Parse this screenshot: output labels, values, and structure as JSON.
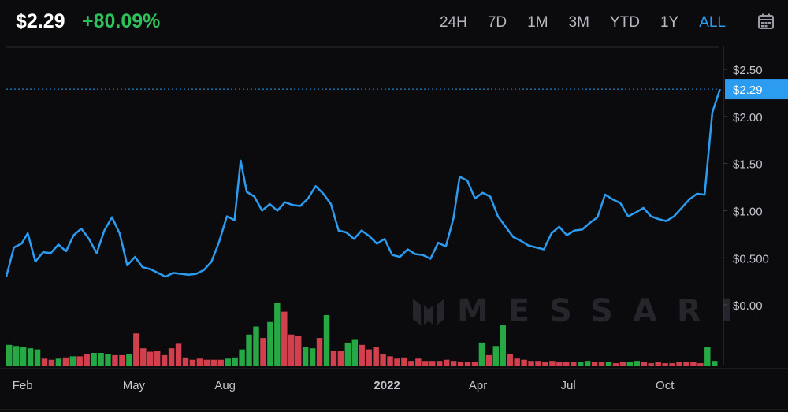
{
  "header": {
    "price": "$2.29",
    "change": "+80.09%",
    "ranges": [
      "24H",
      "7D",
      "1M",
      "3M",
      "YTD",
      "1Y",
      "ALL"
    ],
    "active_range": "ALL",
    "calendar_icon": "calendar-icon"
  },
  "watermark": {
    "text": "MESSARI",
    "icon": "messari-logo-icon"
  },
  "colors": {
    "line": "#2b9cf0",
    "up": "#26a844",
    "down": "#d2404e",
    "background": "#0b0b0e",
    "accent": "#2b9cf0"
  },
  "chart_data": {
    "type": "line",
    "current_price_label": "$2.29",
    "current_price": 2.29,
    "y_ticks": [
      "$2.50",
      "$2.00",
      "$1.50",
      "$1.00",
      "$0.500",
      "$0.00"
    ],
    "y_tick_values": [
      2.5,
      2.0,
      1.5,
      1.0,
      0.5,
      0.0
    ],
    "ylim": [
      -0.3,
      2.65
    ],
    "x_ticks": [
      "Feb",
      "May",
      "Aug",
      "2022",
      "Apr",
      "Jul",
      "Oct"
    ],
    "x_tick_positions": [
      0.2,
      3.8,
      6.8,
      12,
      15.1,
      18.1,
      21.2
    ],
    "xlim": [
      0,
      23
    ],
    "grid": false,
    "price_series": [
      [
        0.0,
        0.3
      ],
      [
        0.25,
        0.61
      ],
      [
        0.5,
        0.65
      ],
      [
        0.7,
        0.76
      ],
      [
        0.95,
        0.46
      ],
      [
        1.2,
        0.56
      ],
      [
        1.45,
        0.55
      ],
      [
        1.7,
        0.64
      ],
      [
        1.95,
        0.57
      ],
      [
        2.2,
        0.74
      ],
      [
        2.45,
        0.81
      ],
      [
        2.7,
        0.7
      ],
      [
        2.95,
        0.55
      ],
      [
        3.2,
        0.79
      ],
      [
        3.45,
        0.93
      ],
      [
        3.7,
        0.76
      ],
      [
        3.95,
        0.42
      ],
      [
        4.2,
        0.51
      ],
      [
        4.45,
        0.4
      ],
      [
        4.7,
        0.38
      ],
      [
        4.95,
        0.34
      ],
      [
        5.2,
        0.3
      ],
      [
        5.45,
        0.34
      ],
      [
        5.7,
        0.33
      ],
      [
        5.95,
        0.32
      ],
      [
        6.2,
        0.33
      ],
      [
        6.45,
        0.37
      ],
      [
        6.7,
        0.46
      ],
      [
        6.95,
        0.67
      ],
      [
        7.2,
        0.94
      ],
      [
        7.45,
        0.9
      ],
      [
        7.65,
        1.53
      ],
      [
        7.85,
        1.2
      ],
      [
        8.1,
        1.15
      ],
      [
        8.35,
        1.0
      ],
      [
        8.6,
        1.07
      ],
      [
        8.85,
        1.0
      ],
      [
        9.1,
        1.09
      ],
      [
        9.35,
        1.06
      ],
      [
        9.6,
        1.05
      ],
      [
        9.85,
        1.13
      ],
      [
        10.1,
        1.26
      ],
      [
        10.35,
        1.18
      ],
      [
        10.6,
        1.07
      ],
      [
        10.85,
        0.79
      ],
      [
        11.1,
        0.77
      ],
      [
        11.35,
        0.7
      ],
      [
        11.6,
        0.79
      ],
      [
        11.85,
        0.73
      ],
      [
        12.1,
        0.65
      ],
      [
        12.35,
        0.7
      ],
      [
        12.6,
        0.53
      ],
      [
        12.85,
        0.51
      ],
      [
        13.1,
        0.59
      ],
      [
        13.35,
        0.54
      ],
      [
        13.6,
        0.53
      ],
      [
        13.85,
        0.49
      ],
      [
        14.1,
        0.66
      ],
      [
        14.35,
        0.62
      ],
      [
        14.6,
        0.92
      ],
      [
        14.8,
        1.36
      ],
      [
        15.05,
        1.32
      ],
      [
        15.3,
        1.13
      ],
      [
        15.55,
        1.19
      ],
      [
        15.8,
        1.15
      ],
      [
        16.05,
        0.94
      ],
      [
        16.3,
        0.83
      ],
      [
        16.55,
        0.72
      ],
      [
        16.8,
        0.68
      ],
      [
        17.05,
        0.63
      ],
      [
        17.3,
        0.61
      ],
      [
        17.55,
        0.59
      ],
      [
        17.8,
        0.76
      ],
      [
        18.05,
        0.83
      ],
      [
        18.3,
        0.74
      ],
      [
        18.55,
        0.79
      ],
      [
        18.8,
        0.8
      ],
      [
        19.05,
        0.87
      ],
      [
        19.3,
        0.93
      ],
      [
        19.55,
        1.17
      ],
      [
        19.8,
        1.12
      ],
      [
        20.05,
        1.08
      ],
      [
        20.3,
        0.94
      ],
      [
        20.55,
        0.98
      ],
      [
        20.8,
        1.03
      ],
      [
        21.05,
        0.94
      ],
      [
        21.3,
        0.91
      ],
      [
        21.55,
        0.89
      ],
      [
        21.8,
        0.94
      ],
      [
        22.05,
        1.03
      ],
      [
        22.3,
        1.12
      ],
      [
        22.55,
        1.18
      ],
      [
        22.8,
        1.17
      ],
      [
        23.05,
        2.04
      ],
      [
        23.3,
        2.29
      ]
    ],
    "volume_bars": [
      {
        "up": true,
        "v": 0.18
      },
      {
        "up": true,
        "v": 0.17
      },
      {
        "up": true,
        "v": 0.16
      },
      {
        "up": true,
        "v": 0.15
      },
      {
        "up": true,
        "v": 0.14
      },
      {
        "up": false,
        "v": 0.06
      },
      {
        "up": false,
        "v": 0.05
      },
      {
        "up": true,
        "v": 0.06
      },
      {
        "up": false,
        "v": 0.07
      },
      {
        "up": true,
        "v": 0.08
      },
      {
        "up": false,
        "v": 0.08
      },
      {
        "up": false,
        "v": 0.1
      },
      {
        "up": true,
        "v": 0.11
      },
      {
        "up": true,
        "v": 0.11
      },
      {
        "up": true,
        "v": 0.1
      },
      {
        "up": false,
        "v": 0.09
      },
      {
        "up": false,
        "v": 0.09
      },
      {
        "up": true,
        "v": 0.1
      },
      {
        "up": false,
        "v": 0.28
      },
      {
        "up": false,
        "v": 0.15
      },
      {
        "up": false,
        "v": 0.12
      },
      {
        "up": false,
        "v": 0.13
      },
      {
        "up": false,
        "v": 0.09
      },
      {
        "up": false,
        "v": 0.15
      },
      {
        "up": false,
        "v": 0.19
      },
      {
        "up": false,
        "v": 0.07
      },
      {
        "up": false,
        "v": 0.05
      },
      {
        "up": false,
        "v": 0.06
      },
      {
        "up": false,
        "v": 0.05
      },
      {
        "up": false,
        "v": 0.05
      },
      {
        "up": false,
        "v": 0.05
      },
      {
        "up": true,
        "v": 0.06
      },
      {
        "up": true,
        "v": 0.07
      },
      {
        "up": true,
        "v": 0.14
      },
      {
        "up": true,
        "v": 0.27
      },
      {
        "up": true,
        "v": 0.34
      },
      {
        "up": false,
        "v": 0.24
      },
      {
        "up": true,
        "v": 0.38
      },
      {
        "up": true,
        "v": 0.55
      },
      {
        "up": false,
        "v": 0.47
      },
      {
        "up": false,
        "v": 0.27
      },
      {
        "up": false,
        "v": 0.26
      },
      {
        "up": true,
        "v": 0.16
      },
      {
        "up": true,
        "v": 0.15
      },
      {
        "up": false,
        "v": 0.24
      },
      {
        "up": true,
        "v": 0.44
      },
      {
        "up": false,
        "v": 0.13
      },
      {
        "up": false,
        "v": 0.13
      },
      {
        "up": true,
        "v": 0.2
      },
      {
        "up": true,
        "v": 0.23
      },
      {
        "up": false,
        "v": 0.18
      },
      {
        "up": false,
        "v": 0.14
      },
      {
        "up": false,
        "v": 0.16
      },
      {
        "up": false,
        "v": 0.1
      },
      {
        "up": false,
        "v": 0.08
      },
      {
        "up": false,
        "v": 0.06
      },
      {
        "up": false,
        "v": 0.07
      },
      {
        "up": false,
        "v": 0.04
      },
      {
        "up": false,
        "v": 0.06
      },
      {
        "up": false,
        "v": 0.04
      },
      {
        "up": false,
        "v": 0.04
      },
      {
        "up": false,
        "v": 0.04
      },
      {
        "up": false,
        "v": 0.05
      },
      {
        "up": false,
        "v": 0.04
      },
      {
        "up": false,
        "v": 0.03
      },
      {
        "up": false,
        "v": 0.03
      },
      {
        "up": false,
        "v": 0.03
      },
      {
        "up": true,
        "v": 0.2
      },
      {
        "up": false,
        "v": 0.09
      },
      {
        "up": true,
        "v": 0.17
      },
      {
        "up": true,
        "v": 0.35
      },
      {
        "up": false,
        "v": 0.1
      },
      {
        "up": false,
        "v": 0.06
      },
      {
        "up": false,
        "v": 0.05
      },
      {
        "up": false,
        "v": 0.04
      },
      {
        "up": false,
        "v": 0.04
      },
      {
        "up": false,
        "v": 0.03
      },
      {
        "up": false,
        "v": 0.04
      },
      {
        "up": false,
        "v": 0.03
      },
      {
        "up": false,
        "v": 0.03
      },
      {
        "up": false,
        "v": 0.03
      },
      {
        "up": true,
        "v": 0.03
      },
      {
        "up": true,
        "v": 0.04
      },
      {
        "up": false,
        "v": 0.03
      },
      {
        "up": false,
        "v": 0.03
      },
      {
        "up": true,
        "v": 0.03
      },
      {
        "up": false,
        "v": 0.02
      },
      {
        "up": false,
        "v": 0.03
      },
      {
        "up": true,
        "v": 0.03
      },
      {
        "up": true,
        "v": 0.04
      },
      {
        "up": false,
        "v": 0.03
      },
      {
        "up": false,
        "v": 0.02
      },
      {
        "up": false,
        "v": 0.03
      },
      {
        "up": false,
        "v": 0.02
      },
      {
        "up": false,
        "v": 0.02
      },
      {
        "up": false,
        "v": 0.03
      },
      {
        "up": false,
        "v": 0.03
      },
      {
        "up": false,
        "v": 0.03
      },
      {
        "up": false,
        "v": 0.02
      },
      {
        "up": true,
        "v": 0.16
      },
      {
        "up": true,
        "v": 0.04
      }
    ]
  }
}
